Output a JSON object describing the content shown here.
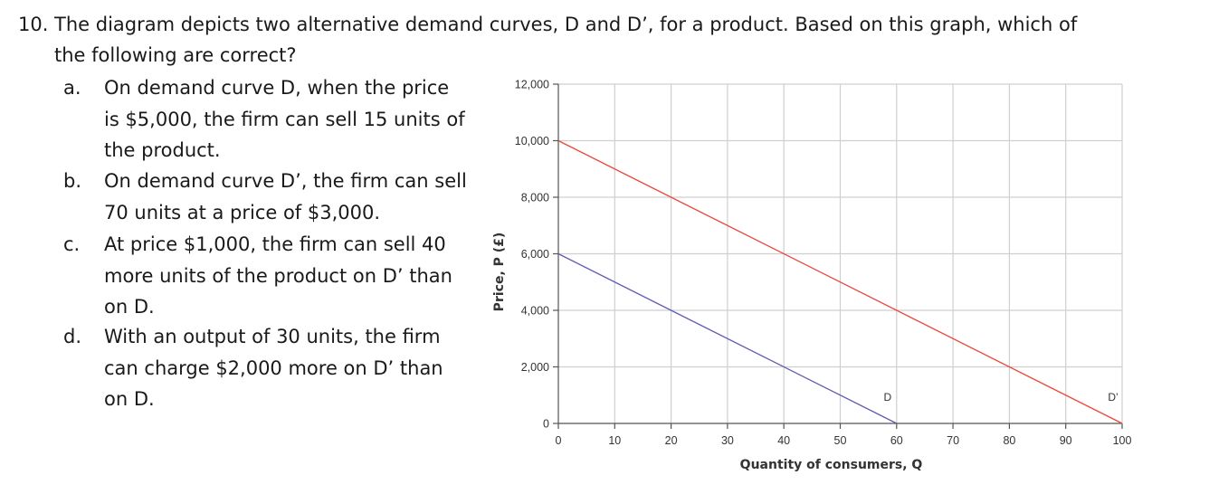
{
  "question": {
    "number": "10.",
    "text_line1": "The diagram depicts two alternative demand curves, D and D’, for a product. Based on this graph, which of",
    "text_line2": "the following are correct?"
  },
  "options": [
    {
      "letter": "a.",
      "lines": [
        "On demand curve D, when the price",
        "is $5,000, the firm can sell 15 units of",
        "the product."
      ]
    },
    {
      "letter": "b.",
      "lines": [
        "On demand curve D’, the firm can sell",
        "70 units at a price of $3,000."
      ]
    },
    {
      "letter": "c.",
      "lines": [
        "At price $1,000, the firm can sell 40",
        "more units of the product on D’ than",
        "on D."
      ]
    },
    {
      "letter": "d.",
      "lines": [
        "With an output of 30 units, the firm",
        "can charge $2,000 more on D’ than",
        "on D."
      ]
    }
  ],
  "chart_data": {
    "type": "line",
    "xlabel": "Quantity of consumers, Q",
    "ylabel": "Price, P (£)",
    "xlim": [
      0,
      100
    ],
    "ylim": [
      0,
      12000
    ],
    "x_ticks": [
      0,
      10,
      20,
      30,
      40,
      50,
      60,
      70,
      80,
      90,
      100
    ],
    "x_tick_labels": [
      "0",
      "10",
      "20",
      "30",
      "40",
      "50",
      "60",
      "70",
      "80",
      "90",
      "100"
    ],
    "y_ticks": [
      0,
      2000,
      4000,
      6000,
      8000,
      10000,
      12000
    ],
    "y_tick_labels": [
      "0",
      "2,000",
      "4,000",
      "6,000",
      "8,000",
      "10,000",
      "12,000"
    ],
    "grid": true,
    "series": [
      {
        "name": "D",
        "color": "#5b5bb5",
        "x": [
          0,
          60
        ],
        "y": [
          6000,
          0
        ]
      },
      {
        "name": "D’",
        "color": "#e8473a",
        "x": [
          0,
          100
        ],
        "y": [
          10000,
          0
        ]
      }
    ]
  }
}
